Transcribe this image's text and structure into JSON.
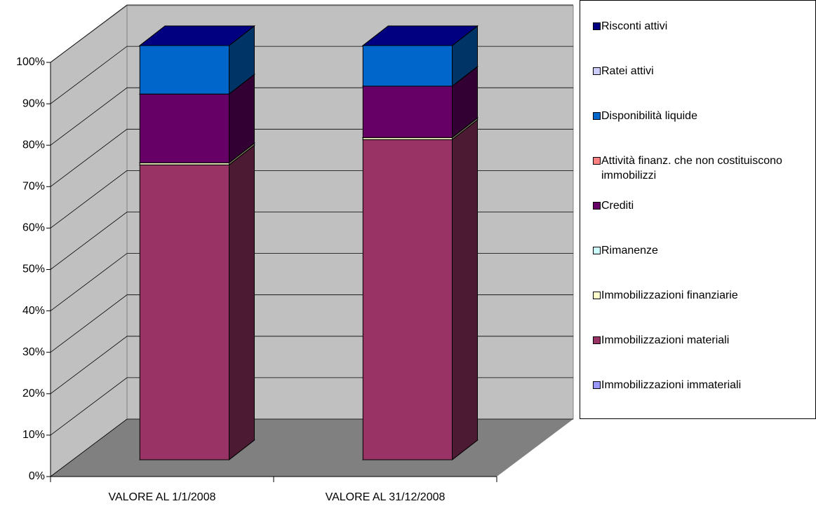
{
  "chart_data": {
    "type": "bar3d_stacked_percent",
    "categories": [
      "VALORE AL 1/1/2008",
      "VALORE AL 31/12/2008"
    ],
    "series": [
      {
        "name": "Immobilizzazioni immateriali",
        "color": "#9999ff",
        "values": [
          0,
          0
        ]
      },
      {
        "name": "Immobilizzazioni materiali",
        "color": "#993366",
        "values": [
          71.2,
          77.3
        ]
      },
      {
        "name": "Immobilizzazioni finanziarie",
        "color": "#ffffcc",
        "values": [
          0.5,
          0.5
        ]
      },
      {
        "name": "Rimanenze",
        "color": "#ccffff",
        "values": [
          0,
          0
        ]
      },
      {
        "name": "Crediti",
        "color": "#660066",
        "values": [
          16.6,
          12.4
        ]
      },
      {
        "name": "Attività finanz. che non costituiscono immobilizzi",
        "color": "#ff8080",
        "values": [
          0,
          0
        ]
      },
      {
        "name": "Disponibilità liquide",
        "color": "#0066cc",
        "values": [
          11.7,
          9.8
        ]
      },
      {
        "name": "Ratei attivi",
        "color": "#ccccff",
        "values": [
          0,
          0
        ]
      },
      {
        "name": "Risconti attivi",
        "color": "#000080",
        "values": [
          0,
          0
        ]
      }
    ],
    "ylim": [
      0,
      100
    ],
    "yticks": [
      {
        "value": 0,
        "label": "0%"
      },
      {
        "value": 10,
        "label": "10%"
      },
      {
        "value": 20,
        "label": "20%"
      },
      {
        "value": 30,
        "label": "30%"
      },
      {
        "value": 40,
        "label": "40%"
      },
      {
        "value": 50,
        "label": "50%"
      },
      {
        "value": 60,
        "label": "60%"
      },
      {
        "value": 70,
        "label": "70%"
      },
      {
        "value": 80,
        "label": "80%"
      },
      {
        "value": 90,
        "label": "90%"
      },
      {
        "value": 100,
        "label": "100%"
      }
    ],
    "grid": true,
    "legend": "right"
  }
}
